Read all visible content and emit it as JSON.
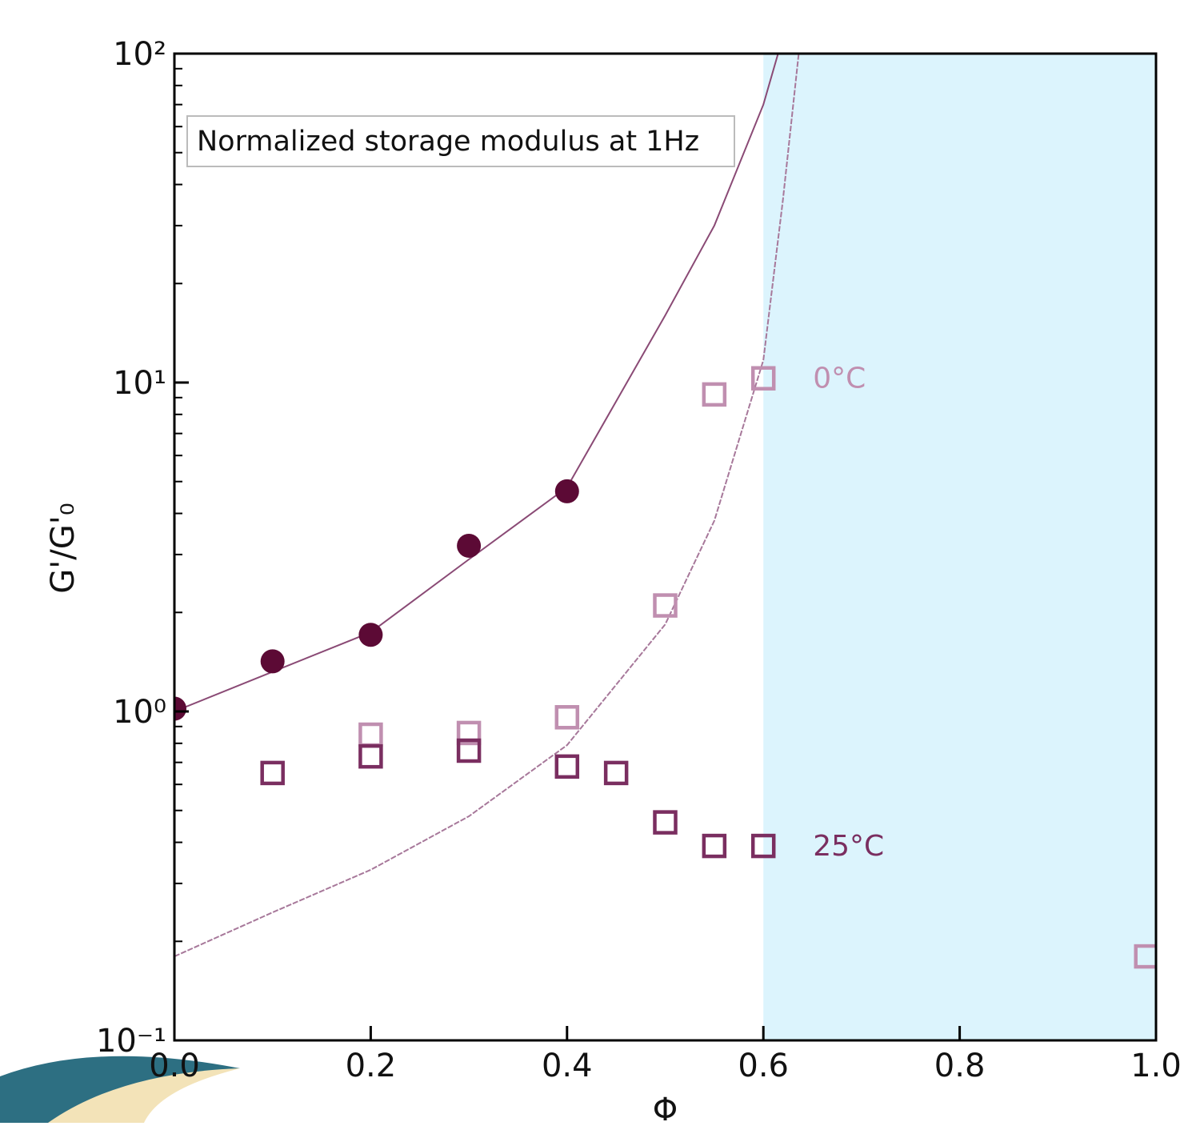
{
  "chart_data": {
    "type": "scatter",
    "annotation": "Normalized storage modulus at 1Hz",
    "x_label": "Φ",
    "y_label": "G'/G'₀",
    "xlim": [
      0,
      1
    ],
    "ylim": [
      0.1,
      100
    ],
    "log_y": true,
    "xticks": [
      {
        "value": 0,
        "label": "0.0"
      },
      0.2,
      0.4,
      0.6,
      0.8,
      {
        "value": 1,
        "label": "1.0"
      }
    ],
    "yticks": [
      {
        "value": 0.1,
        "label": "10⁻¹"
      },
      {
        "value": 1,
        "label": "10⁰"
      },
      {
        "value": 10,
        "label": "10¹"
      },
      {
        "value": 100,
        "label": "10²"
      }
    ],
    "yminorticks": [
      0.2,
      0.3,
      0.4,
      0.5,
      0.6,
      0.7,
      0.8,
      0.9,
      2,
      3,
      4,
      5,
      6,
      7,
      8,
      9,
      20,
      30,
      40,
      50,
      60,
      70,
      80,
      90
    ],
    "shaded_region": {
      "xlim": [
        0.6,
        1.0
      ],
      "color": "#dcf4fd"
    },
    "series": [
      {
        "marker": "circle",
        "color": "#5c0a35",
        "x": [
          0,
          0.1,
          0.2,
          0.3,
          0.4
        ],
        "values": [
          1.02,
          1.42,
          1.71,
          3.19,
          4.67
        ]
      },
      {
        "name": "0°C",
        "marker": "square",
        "color": "#c08fb0",
        "x": [
          0.2,
          0.3,
          0.4,
          0.5,
          0.55,
          0.6,
          0.99
        ],
        "values": [
          0.85,
          0.86,
          0.96,
          2.1,
          9.2,
          10.3,
          0.18
        ]
      },
      {
        "name": "25°C",
        "marker": "square",
        "color": "#7a2e60",
        "x": [
          0.1,
          0.2,
          0.3,
          0.4,
          0.45,
          0.5,
          0.55,
          0.6
        ],
        "values": [
          0.65,
          0.73,
          0.76,
          0.68,
          0.65,
          0.46,
          0.39,
          0.39
        ]
      },
      {
        "line": "solid",
        "color": "#8a4a75",
        "x": [
          0,
          0.1,
          0.2,
          0.3,
          0.4,
          0.5,
          0.55,
          0.6,
          0.615
        ],
        "values": [
          1.0,
          1.32,
          1.74,
          2.9,
          4.8,
          16,
          30,
          70,
          100
        ]
      },
      {
        "line": "dashed",
        "color": "#a7789a",
        "x": [
          0,
          0.1,
          0.2,
          0.3,
          0.4,
          0.5,
          0.55,
          0.6,
          0.62,
          0.636
        ],
        "values": [
          0.18,
          0.245,
          0.33,
          0.48,
          0.79,
          1.84,
          3.8,
          11.7,
          36,
          100
        ]
      }
    ]
  }
}
